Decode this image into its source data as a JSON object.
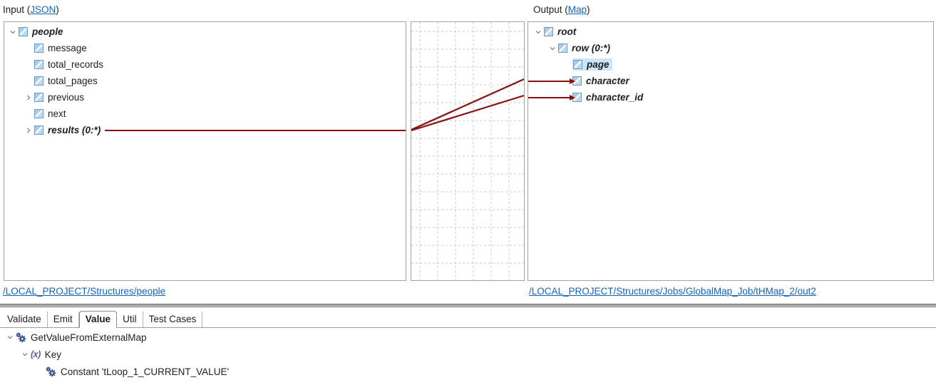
{
  "header": {
    "input_prefix": "Input (",
    "input_link": "JSON",
    "input_suffix": ")",
    "output_prefix": "Output (",
    "output_link": "Map",
    "output_suffix": ")"
  },
  "input_tree": {
    "items": [
      {
        "label": "people",
        "emphasis": true,
        "chevron": "expanded",
        "indent": 0
      },
      {
        "label": "message",
        "emphasis": false,
        "chevron": "none",
        "indent": 1
      },
      {
        "label": "total_records",
        "emphasis": false,
        "chevron": "none",
        "indent": 1
      },
      {
        "label": "total_pages",
        "emphasis": false,
        "chevron": "none",
        "indent": 1
      },
      {
        "label": "previous",
        "emphasis": false,
        "chevron": "collapsed",
        "indent": 1
      },
      {
        "label": "next",
        "emphasis": false,
        "chevron": "none",
        "indent": 1
      },
      {
        "label": "results (0:*)",
        "emphasis": true,
        "chevron": "collapsed",
        "indent": 1,
        "mapped_out": true
      }
    ],
    "structure_link": "/LOCAL_PROJECT/Structures/people"
  },
  "output_tree": {
    "items": [
      {
        "label": "root",
        "emphasis": true,
        "chevron": "expanded",
        "indent": 0
      },
      {
        "label": "row (0:*)",
        "emphasis": true,
        "chevron": "expanded",
        "indent": 1
      },
      {
        "label": "page",
        "emphasis": true,
        "chevron": "none",
        "indent": 2,
        "selected": true
      },
      {
        "label": "character",
        "emphasis": true,
        "chevron": "none",
        "indent": 2,
        "mapped_in": true
      },
      {
        "label": "character_id",
        "emphasis": true,
        "chevron": "none",
        "indent": 2,
        "mapped_in": true
      }
    ],
    "structure_link": "/LOCAL_PROJECT/Structures/Jobs/GlobalMap_Job/tHMap_2/out2"
  },
  "mappings": [
    {
      "from": "results (0:*)",
      "to": "character"
    },
    {
      "from": "results (0:*)",
      "to": "character_id"
    }
  ],
  "tabs": [
    {
      "label": "Validate",
      "selected": false
    },
    {
      "label": "Emit",
      "selected": false
    },
    {
      "label": "Value",
      "selected": true
    },
    {
      "label": "Util",
      "selected": false
    },
    {
      "label": "Test Cases",
      "selected": false
    }
  ],
  "value_tree": {
    "items": [
      {
        "label": "GetValueFromExternalMap",
        "icon": "gears-icon",
        "chevron": "expanded",
        "indent": 0
      },
      {
        "label": "Key",
        "icon": "function-icon",
        "chevron": "expanded",
        "indent": 1
      },
      {
        "label": "Constant 'tLoop_1_CURRENT_VALUE'",
        "icon": "gears-icon",
        "chevron": "none",
        "indent": 2
      }
    ]
  },
  "icons": {
    "function_glyph": "(x)"
  },
  "colors": {
    "mapping_line": "#8a0f0f",
    "link": "#1266be",
    "selection_bg": "#cde6f7",
    "node_icon_fill": "#bcd9ef",
    "node_icon_border": "#6b9dc8",
    "function_icon": "#6c55a4",
    "gear_icon": "#27497e"
  }
}
